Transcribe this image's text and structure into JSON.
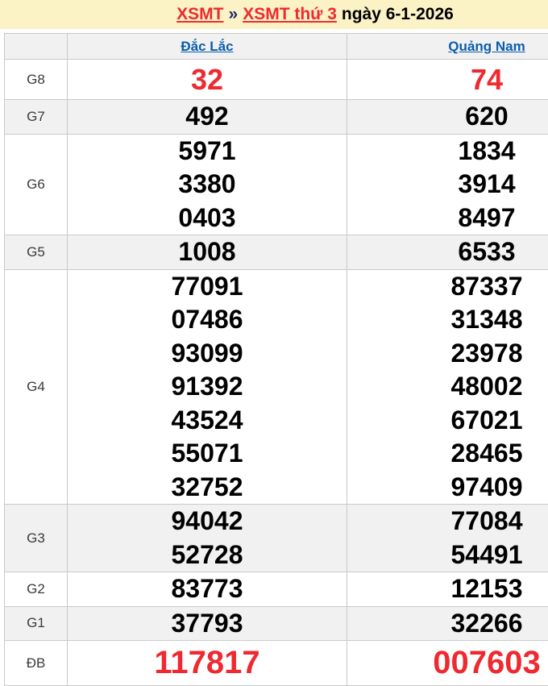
{
  "colors": {
    "accent_red": "#ee2a30",
    "link_blue": "#0b5dab",
    "band_yellow": "#fbf3c6",
    "stripe_gray": "#f1f1f1",
    "border_gray": "#c9c9c9"
  },
  "header": {
    "breadcrumb": [
      {
        "text": "XSMT",
        "link": true
      },
      {
        "text": "»",
        "link": false
      },
      {
        "text": "XSMT thứ 3",
        "link": true
      },
      {
        "text": "ngày 6-1-2026",
        "link": false
      }
    ]
  },
  "table": {
    "corner_label": "",
    "provinces": [
      {
        "label": "Đắc Lắc"
      },
      {
        "label": "Quảng Nam"
      }
    ],
    "rows": [
      {
        "label": "G8",
        "highlight": "red",
        "dac_lac": [
          "32"
        ],
        "quang_nam": [
          "74"
        ]
      },
      {
        "label": "G7",
        "highlight": "none",
        "dac_lac": [
          "492"
        ],
        "quang_nam": [
          "620"
        ]
      },
      {
        "label": "G6",
        "highlight": "none",
        "dac_lac": [
          "5971",
          "3380",
          "0403"
        ],
        "quang_nam": [
          "1834",
          "3914",
          "8497"
        ]
      },
      {
        "label": "G5",
        "highlight": "none",
        "dac_lac": [
          "1008"
        ],
        "quang_nam": [
          "6533"
        ]
      },
      {
        "label": "G4",
        "highlight": "none",
        "dac_lac": [
          "77091",
          "07486",
          "93099",
          "91392",
          "43524",
          "55071",
          "32752"
        ],
        "quang_nam": [
          "87337",
          "31348",
          "23978",
          "48002",
          "67021",
          "28465",
          "97409"
        ]
      },
      {
        "label": "G3",
        "highlight": "none",
        "dac_lac": [
          "94042",
          "52728"
        ],
        "quang_nam": [
          "77084",
          "54491"
        ]
      },
      {
        "label": "G2",
        "highlight": "none",
        "dac_lac": [
          "83773"
        ],
        "quang_nam": [
          "12153"
        ]
      },
      {
        "label": "G1",
        "highlight": "none",
        "dac_lac": [
          "37793"
        ],
        "quang_nam": [
          "32266"
        ]
      },
      {
        "label": "ĐB",
        "highlight": "db",
        "dac_lac": [
          "117817"
        ],
        "quang_nam": [
          "007603"
        ]
      }
    ]
  }
}
